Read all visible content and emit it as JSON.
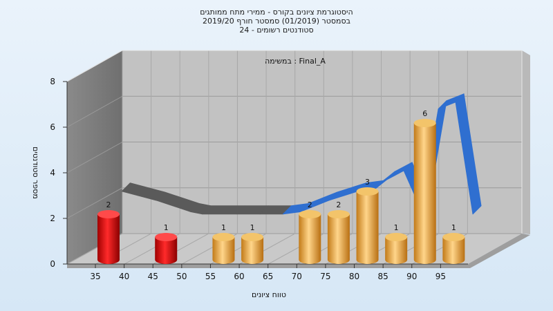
{
  "chart_data": {
    "type": "bar",
    "title": [
      "היסטוגרמת ציונים בקורס - ממירי מתח ממותגים",
      "בסמסטר  (01/2019)  סמסטר חורף 2019/20",
      "סטודנטים רשומים - 24"
    ],
    "annotation": "במשימה : Final_A",
    "xlabel": "טווח ציונים",
    "ylabel": "מספר סטודנטים",
    "x_ticks": [
      35,
      40,
      45,
      50,
      55,
      60,
      65,
      70,
      75,
      80,
      85,
      90,
      95
    ],
    "y_ticks": [
      0,
      2,
      4,
      6,
      8
    ],
    "ylim": [
      0,
      8
    ],
    "bars": [
      {
        "x": 35,
        "value": 2,
        "label": "2",
        "color": "red"
      },
      {
        "x": 45,
        "value": 1,
        "label": "1",
        "color": "red"
      },
      {
        "x": 55,
        "value": 1,
        "label": "1",
        "color": "gold"
      },
      {
        "x": 60,
        "value": 1,
        "label": "1",
        "color": "gold"
      },
      {
        "x": 70,
        "value": 2,
        "label": "2",
        "color": "gold"
      },
      {
        "x": 75,
        "value": 2,
        "label": "2",
        "color": "gold"
      },
      {
        "x": 80,
        "value": 3,
        "label": "3",
        "color": "gold"
      },
      {
        "x": 85,
        "value": 1,
        "label": "1",
        "color": "gold"
      },
      {
        "x": 90,
        "value": 6,
        "label": "6",
        "color": "gold"
      },
      {
        "x": 95,
        "value": 1,
        "label": "1",
        "color": "gold"
      }
    ],
    "trend": {
      "x": [
        36,
        42,
        48,
        50,
        56,
        60,
        64,
        67,
        72,
        77,
        80,
        82,
        85,
        88,
        91,
        94,
        97
      ],
      "values": [
        2.7,
        2.3,
        1.8,
        1.7,
        1.7,
        1.7,
        1.7,
        1.8,
        2.3,
        2.7,
        2.8,
        3.2,
        3.6,
        1.9,
        6.3,
        6.6,
        1.7
      ],
      "colors": {
        "dark": "#5a5a5a",
        "blue": "#2f6fd0"
      }
    }
  }
}
